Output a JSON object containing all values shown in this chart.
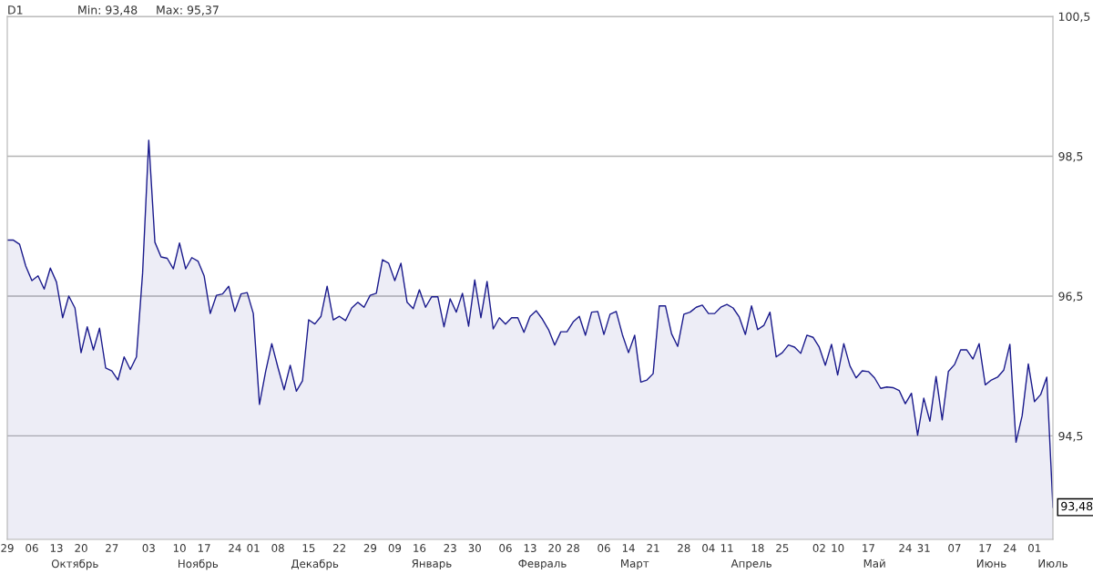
{
  "chart_data": {
    "type": "area",
    "title": "D1",
    "subtitle": "Min: 93,48     Max: 95,37",
    "categories": [
      "29",
      null,
      null,
      null,
      "06",
      null,
      null,
      null,
      "13",
      null,
      null,
      "\nОктябрь",
      "20",
      null,
      null,
      null,
      null,
      "27",
      null,
      null,
      null,
      null,
      null,
      "03",
      null,
      null,
      null,
      null,
      "10",
      null,
      null,
      "\nНоябрь",
      "17",
      null,
      null,
      null,
      null,
      "24",
      null,
      null,
      "01",
      null,
      null,
      null,
      "08",
      null,
      null,
      null,
      null,
      "15",
      "\nДекабрь",
      null,
      null,
      null,
      "22",
      null,
      null,
      null,
      null,
      "29",
      null,
      null,
      null,
      "09",
      null,
      null,
      null,
      "16",
      null,
      "\nЯнварь",
      null,
      null,
      "23",
      null,
      null,
      null,
      "30",
      null,
      null,
      null,
      null,
      "06",
      null,
      null,
      null,
      "13",
      null,
      "\nФевраль",
      null,
      "20",
      null,
      null,
      "28",
      null,
      null,
      null,
      null,
      "06",
      null,
      null,
      null,
      "14",
      "\nМарт",
      null,
      null,
      "21",
      null,
      null,
      null,
      null,
      "28",
      null,
      null,
      null,
      "04",
      null,
      null,
      "11",
      null,
      null,
      null,
      "\nАпрель",
      "18",
      null,
      null,
      null,
      "25",
      null,
      null,
      null,
      null,
      null,
      "02",
      null,
      null,
      "10",
      null,
      null,
      null,
      null,
      "17",
      "\nМай",
      null,
      null,
      null,
      null,
      "24",
      null,
      null,
      "31",
      null,
      null,
      null,
      null,
      "07",
      null,
      null,
      null,
      null,
      "17",
      "\nИюнь",
      null,
      null,
      "24",
      null,
      null,
      null,
      "01",
      null,
      null,
      "\nИюль"
    ],
    "series": [
      {
        "color": "#1a1a8c",
        "values": [
          97.3,
          97.3,
          97.24,
          96.93,
          96.72,
          96.79,
          96.6,
          96.9,
          96.7,
          96.19,
          96.5,
          96.33,
          95.69,
          96.06,
          95.73,
          96.04,
          95.47,
          95.43,
          95.3,
          95.63,
          95.45,
          95.63,
          96.83,
          98.73,
          97.27,
          97.06,
          97.04,
          96.89,
          97.26,
          96.89,
          97.05,
          97.0,
          96.79,
          96.25,
          96.51,
          96.53,
          96.64,
          96.28,
          96.53,
          96.55,
          96.25,
          94.95,
          95.42,
          95.82,
          95.48,
          95.16,
          95.51,
          95.14,
          95.29,
          96.16,
          96.1,
          96.21,
          96.64,
          96.16,
          96.21,
          96.15,
          96.33,
          96.41,
          96.34,
          96.51,
          96.54,
          97.02,
          96.97,
          96.72,
          96.97,
          96.41,
          96.32,
          96.59,
          96.34,
          96.49,
          96.49,
          96.06,
          96.46,
          96.27,
          96.54,
          96.07,
          96.73,
          96.19,
          96.71,
          96.03,
          96.19,
          96.1,
          96.19,
          96.19,
          95.98,
          96.21,
          96.29,
          96.17,
          96.02,
          95.8,
          95.99,
          95.99,
          96.13,
          96.21,
          95.94,
          96.27,
          96.28,
          95.95,
          96.24,
          96.28,
          95.95,
          95.69,
          95.94,
          95.27,
          95.3,
          95.39,
          96.36,
          96.36,
          95.96,
          95.78,
          96.24,
          96.27,
          96.34,
          96.37,
          96.25,
          96.25,
          96.34,
          96.38,
          96.33,
          96.2,
          95.95,
          96.36,
          96.02,
          96.08,
          96.27,
          95.63,
          95.69,
          95.8,
          95.77,
          95.68,
          95.94,
          95.91,
          95.77,
          95.51,
          95.81,
          95.37,
          95.82,
          95.5,
          95.33,
          95.43,
          95.42,
          95.33,
          95.18,
          95.2,
          95.19,
          95.15,
          94.96,
          95.11,
          94.51,
          95.04,
          94.71,
          95.35,
          94.73,
          95.42,
          95.52,
          95.73,
          95.73,
          95.6,
          95.82,
          95.23,
          95.3,
          95.34,
          95.44,
          95.81,
          94.41,
          94.79,
          95.53,
          94.99,
          95.09,
          95.34,
          93.48
        ]
      }
    ],
    "ylim": [
      93.02,
      100.5
    ],
    "yticks": [
      {
        "value": 94.5,
        "label": "94,5"
      },
      {
        "value": 96.5,
        "label": "96,5"
      },
      {
        "value": 98.5,
        "label": "98,5"
      },
      {
        "value": 100.5,
        "label": "100,5"
      }
    ],
    "grid": "y",
    "legend": false,
    "annotations": [
      "93,48"
    ]
  }
}
